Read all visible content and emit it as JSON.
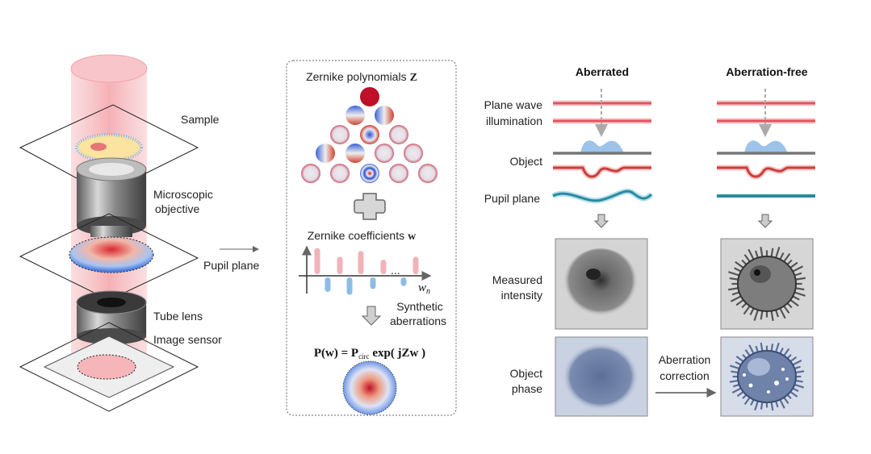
{
  "microscope": {
    "sample_label": "Sample",
    "objective_label_1": "Microscopic",
    "objective_label_2": "objective",
    "pupil_label": "Pupil plane",
    "tube_lens_label": "Tube lens",
    "sensor_label": "Image sensor"
  },
  "zernike_panel": {
    "title": "Zernike polynomials",
    "title_symbol": "Z",
    "coeff_title": "Zernike coefficients",
    "coeff_symbol": "w",
    "axis_label": "w",
    "axis_sub": "n",
    "ellipsis": "...",
    "synthetic_1": "Synthetic",
    "synthetic_2": "aberrations",
    "equation": "P(w) = P",
    "equation_sub": "circ",
    "equation_tail": " exp( jZw )",
    "coefficients": [
      0.9,
      -0.5,
      0.6,
      -0.6,
      0.8,
      -0.4,
      0.5,
      -0.3,
      0.6
    ],
    "positive_color": "#f2b3b8",
    "negative_color": "#8dbde6"
  },
  "comparison": {
    "col_aberrated": "Aberrated",
    "col_free": "Aberration-free",
    "row_plane_wave_1": "Plane wave",
    "row_plane_wave_2": "illumination",
    "row_object": "Object",
    "row_pupil": "Pupil plane",
    "row_intensity_1": "Measured",
    "row_intensity_2": "intensity",
    "row_phase_1": "Object",
    "row_phase_2": "phase",
    "correction_1": "Aberration",
    "correction_2": "correction",
    "wave_color": "#e0555d",
    "pupil_color": "#2a8aa0"
  }
}
